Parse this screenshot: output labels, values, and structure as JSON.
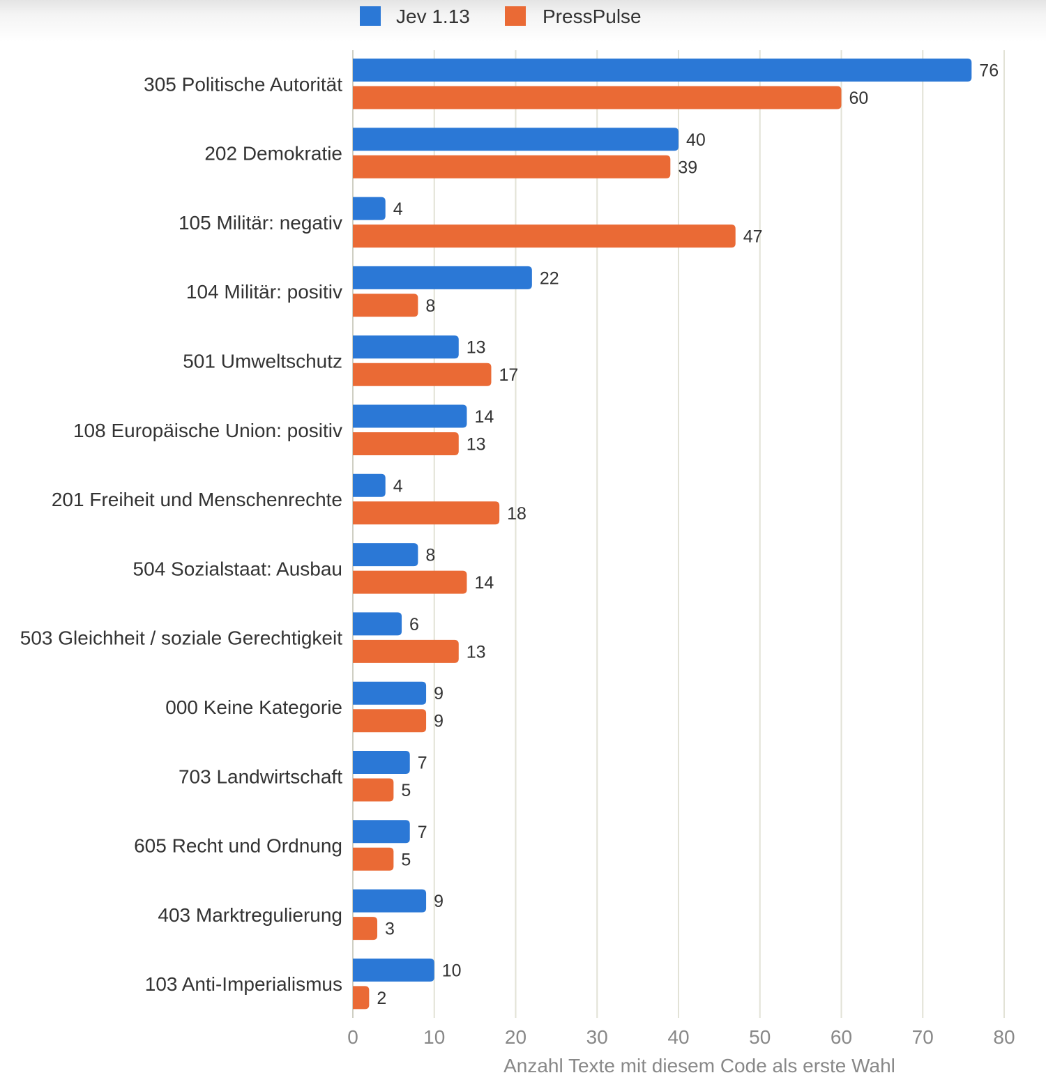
{
  "chart_data": {
    "type": "bar",
    "orientation": "horizontal",
    "categories": [
      "305 Politische Autorität",
      "202 Demokratie",
      "105 Militär: negativ",
      "104 Militär: positiv",
      "501 Umweltschutz",
      "108 Europäische Union: positiv",
      "201 Freiheit und Menschenrechte",
      "504 Sozialstaat: Ausbau",
      "503 Gleichheit / soziale Gerechtigkeit",
      "000 Keine Kategorie",
      "703 Landwirtschaft",
      "605 Recht und Ordnung",
      "403 Marktregulierung",
      "103 Anti-Imperialismus"
    ],
    "series": [
      {
        "name": "Jev 1.13",
        "color": "#2b78d6",
        "values": [
          76,
          40,
          4,
          22,
          13,
          14,
          4,
          8,
          6,
          9,
          7,
          7,
          9,
          10
        ]
      },
      {
        "name": "PressPulse",
        "color": "#ea6a35",
        "values": [
          60,
          39,
          47,
          8,
          17,
          13,
          18,
          14,
          13,
          9,
          5,
          5,
          3,
          2
        ]
      }
    ],
    "xlabel": "Anzahl Texte mit diesem Code als erste Wahl",
    "ylabel": "",
    "xlim": [
      0,
      80
    ],
    "xticks": [
      0,
      10,
      20,
      30,
      40,
      50,
      60,
      70,
      80
    ],
    "grid": true,
    "legend_position": "top"
  }
}
